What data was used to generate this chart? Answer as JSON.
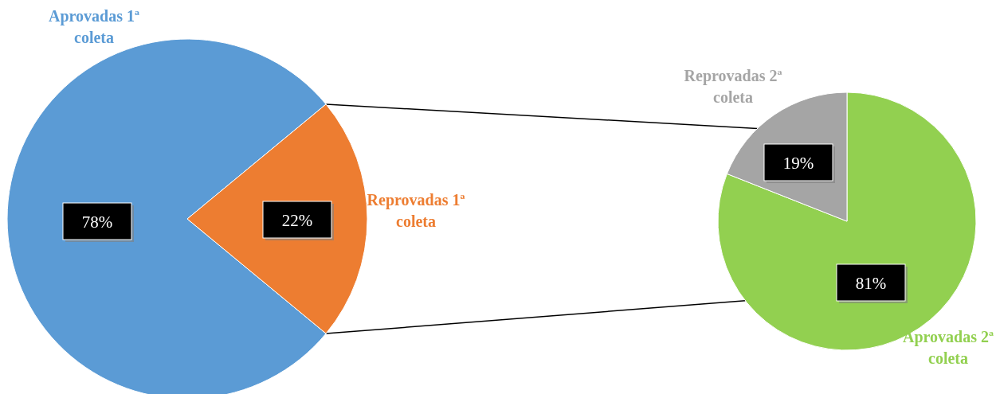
{
  "chart_data": [
    {
      "type": "pie",
      "categories": [
        "Aprovadas 1ª coleta",
        "Reprovadas 1ª coleta"
      ],
      "values": [
        78,
        22
      ],
      "colors": [
        "#5b9bd5",
        "#ed7d31"
      ],
      "value_labels": [
        "78%",
        "22%"
      ]
    },
    {
      "type": "pie",
      "categories": [
        "Aprovadas 2ª coleta",
        "Reprovadas 2ª coleta"
      ],
      "values": [
        81,
        19
      ],
      "colors": [
        "#92d050",
        "#a5a5a5"
      ],
      "value_labels": [
        "81%",
        "19%"
      ]
    }
  ]
}
